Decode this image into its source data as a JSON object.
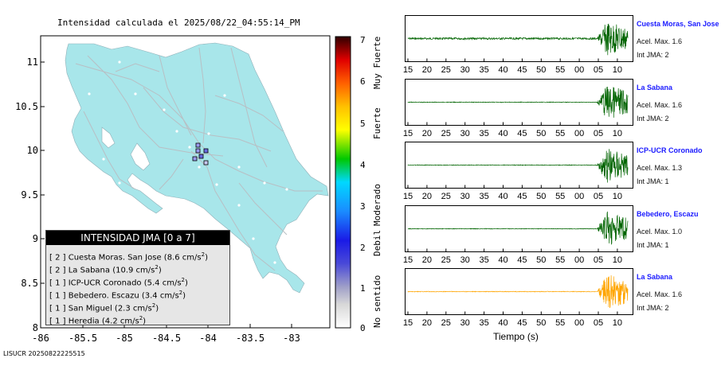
{
  "map": {
    "title": "Intensidad calculada el 2025/08/22_04:55:14_PM",
    "lat_ticks": [
      "11",
      "10.5",
      "10",
      "9.5",
      "9",
      "8.5",
      "8"
    ],
    "lon_ticks": [
      "-86",
      "-85.5",
      "-85",
      "-84.5",
      "-84",
      "-83.5",
      "-83"
    ],
    "colors": {
      "land": "#a8e6ea",
      "roads": "#b8bfc4",
      "ocean": "#ffffff"
    }
  },
  "legend": {
    "header": "INTENSIDAD JMA [0 a 7]",
    "rows": [
      {
        "level": "[ 2 ]",
        "station": "Cuesta Moras. San Jose",
        "accel": "(8.6 cm/s",
        "unit_sup": "2",
        "close": ")"
      },
      {
        "level": "[ 2 ]",
        "station": "La Sabana",
        "accel": "(10.9 cm/s",
        "unit_sup": "2",
        "close": ")"
      },
      {
        "level": "[ 1 ]",
        "station": "ICP-UCR Coronado",
        "accel": "(5.4 cm/s",
        "unit_sup": "2",
        "close": ")"
      },
      {
        "level": "[ 1 ]",
        "station": "Bebedero. Escazu",
        "accel": "(3.4 cm/s",
        "unit_sup": "2",
        "close": ")"
      },
      {
        "level": "[ 1 ]",
        "station": "San Miguel",
        "accel": "(2.3 cm/s",
        "unit_sup": "2",
        "close": ")"
      },
      {
        "level": "[ 1 ]",
        "station": "Heredia",
        "accel": "(4.2 cm/s",
        "unit_sup": "2",
        "close": ")"
      }
    ]
  },
  "colorbar": {
    "ticks": [
      "7",
      "6",
      "5",
      "4",
      "3",
      "2",
      "1",
      "0"
    ],
    "words": [
      "Muy Fuerte",
      "Fuerte",
      "Moderado",
      "Debil",
      "No sentido"
    ]
  },
  "footer": "LISUCR 20250822225515",
  "seismograms": {
    "x_ticks": [
      "15",
      "20",
      "25",
      "30",
      "35",
      "40",
      "45",
      "50",
      "55",
      "00",
      "05",
      "10"
    ],
    "x_label": "Tiempo (s)",
    "accel_prefix": "Acel. Max.",
    "int_prefix": "Int JMA:",
    "stations": [
      {
        "name": "Cuesta Moras, San Jose",
        "accel": "1.6",
        "int": "2",
        "color": "#006400"
      },
      {
        "name": "La Sabana",
        "accel": "1.6",
        "int": "2",
        "color": "#006400"
      },
      {
        "name": "ICP-UCR Coronado",
        "accel": "1.3",
        "int": "1",
        "color": "#006400"
      },
      {
        "name": "Bebedero, Escazu",
        "accel": "1.0",
        "int": "1",
        "color": "#006400"
      },
      {
        "name": "La Sabana",
        "accel": "1.6",
        "int": "2",
        "color": "#ffa500"
      }
    ]
  }
}
